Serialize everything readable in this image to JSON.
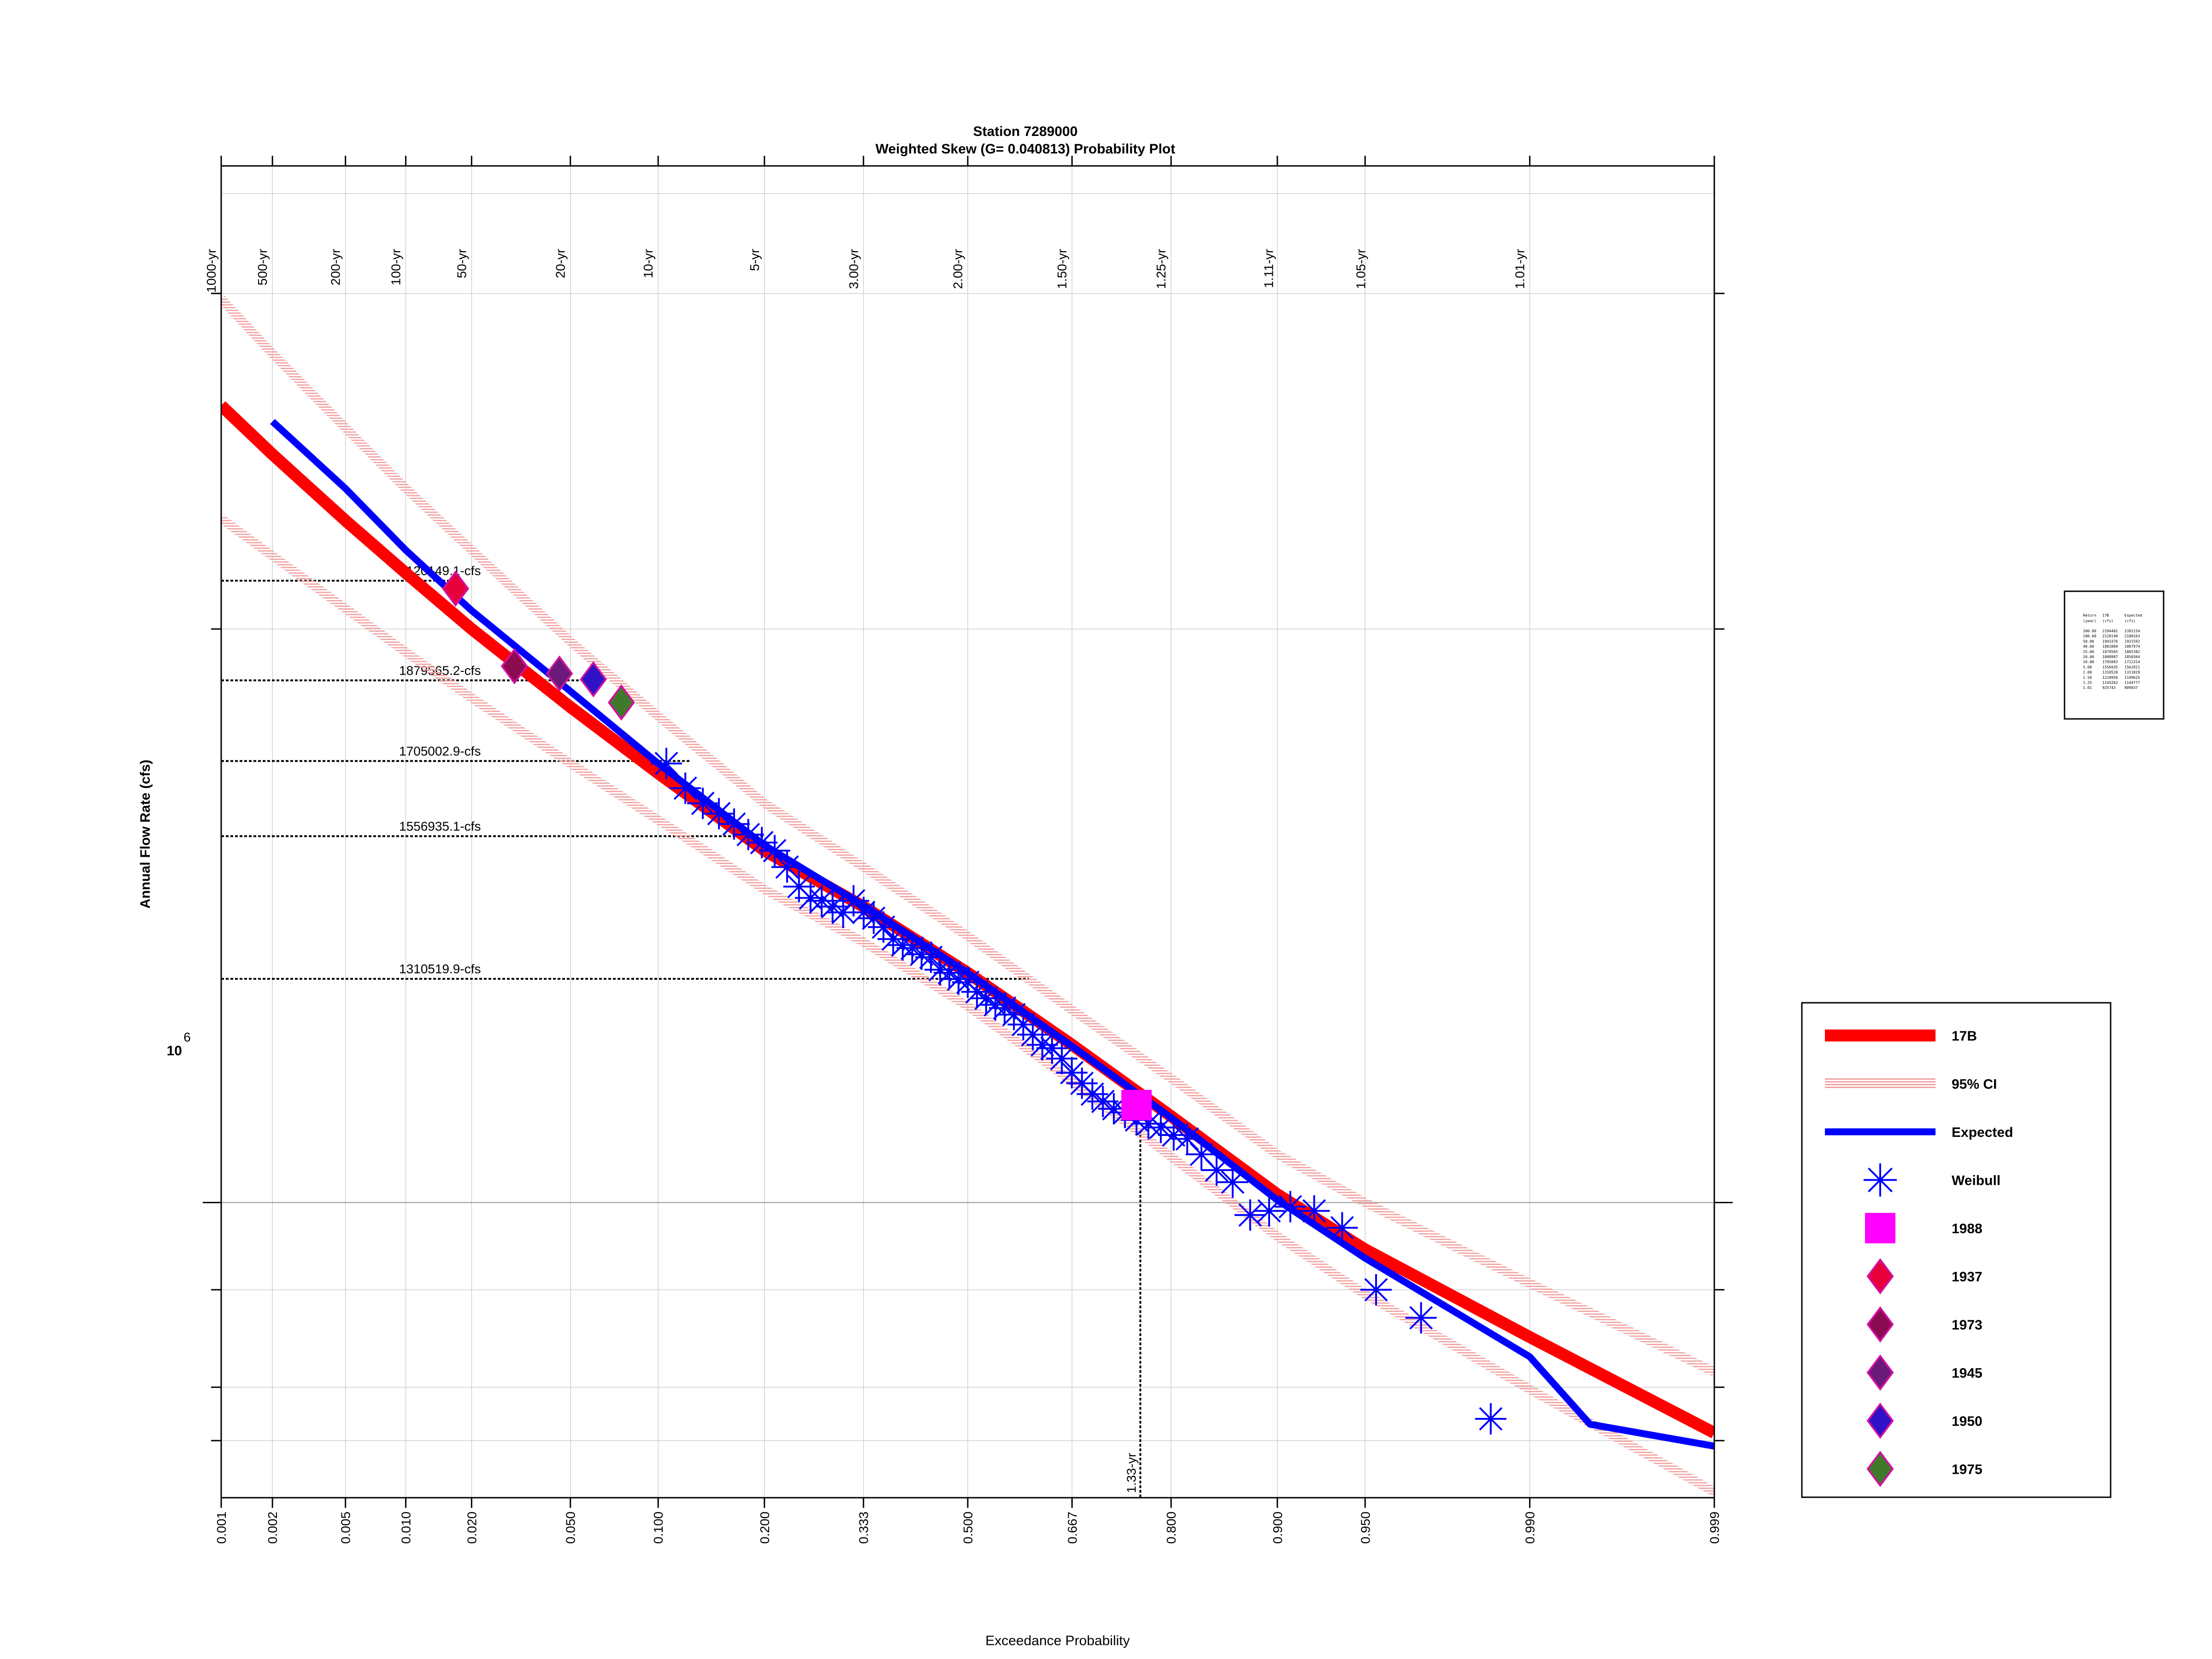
{
  "chart_data": {
    "type": "line",
    "title": "Station 7289000",
    "subtitle": "Weighted Skew (G= 0.040813) Probability Plot",
    "xlabel": "Exceedance Probability",
    "ylabel": "Annual Flow Rate (cfs)",
    "x_scale": "normal-probability (reversed)",
    "y_scale": "log",
    "ylim": [
      700000,
      3500000
    ],
    "grid": true,
    "x_ticks": [
      "0.999",
      "0.990",
      "0.950",
      "0.900",
      "0.800",
      "0.667",
      "0.500",
      "0.333",
      "0.200",
      "0.100",
      "0.050",
      "0.020",
      "0.010",
      "0.005",
      "0.002",
      "0.001"
    ],
    "x_tick_values": [
      0.999,
      0.99,
      0.95,
      0.9,
      0.8,
      0.667,
      0.5,
      0.333,
      0.2,
      0.1,
      0.05,
      0.02,
      0.01,
      0.005,
      0.002,
      0.001
    ],
    "return_period_labels": [
      "1.01-yr",
      "1.05-yr",
      "1.11-yr",
      "1.25-yr",
      "1.50-yr",
      "2.00-yr",
      "3.00-yr",
      "5-yr",
      "10-yr",
      "20-yr",
      "50-yr",
      "100-yr",
      "200-yr",
      "500-yr",
      "1000-yr"
    ],
    "return_period_probs": [
      0.99,
      0.9524,
      0.9009,
      0.8,
      0.6667,
      0.5,
      0.3333,
      0.2,
      0.1,
      0.05,
      0.02,
      0.01,
      0.005,
      0.002,
      0.001
    ],
    "y_tick_label": {
      "base": "10",
      "exp": "6",
      "value": 1000000
    },
    "y_tick_values": [
      750000,
      800000,
      900000,
      1000000,
      2000000,
      3000000
    ],
    "reference_lines": [
      {
        "label": "2120149.1-cfs",
        "value": 2120149.1,
        "prob_end": 0.0172
      },
      {
        "label": "1879565.2-cfs",
        "value": 1879565.2,
        "prob_end": 0.0667
      },
      {
        "label": "1705002.9-cfs",
        "value": 1705002.9,
        "prob_end": 0.125
      },
      {
        "label": "1556935.1-cfs",
        "value": 1556935.1,
        "prob_end": 0.2
      },
      {
        "label": "1310519.9-cfs",
        "value": 1310519.9,
        "prob_end": 0.6
      }
    ],
    "vertical_reference": {
      "label": "1.33-yr",
      "prob": 0.7625,
      "value": 1091000
    },
    "series": [
      {
        "name": "17B",
        "color": "#ff0000",
        "x": [
          0.999,
          0.99,
          0.95,
          0.9,
          0.8,
          0.667,
          0.5,
          0.333,
          0.2,
          0.1,
          0.05,
          0.02,
          0.01,
          0.005,
          0.002,
          0.001
        ],
        "y": [
          757000,
          850000,
          945000,
          1010000,
          1110000,
          1210000,
          1320000,
          1430000,
          1530000,
          1680000,
          1820000,
          2000000,
          2140000,
          2280000,
          2470000,
          2620000
        ]
      },
      {
        "name": "95% CI",
        "color": "#f4a6a6",
        "x": [
          0.999,
          0.99,
          0.95,
          0.9,
          0.8,
          0.667,
          0.5,
          0.333,
          0.2,
          0.1,
          0.05,
          0.02,
          0.01,
          0.005,
          0.002,
          0.001
        ],
        "y": [
          815000,
          907000,
          1000000,
          1060000,
          1162000,
          1262000,
          1380000,
          1500000,
          1620000,
          1800000,
          1970000,
          2200000,
          2370000,
          2550000,
          2790000,
          2980000
        ]
      },
      {
        "name": "",
        "color": "#f4a6a6",
        "x": [
          0.999,
          0.99,
          0.95,
          0.9,
          0.8,
          0.667,
          0.5,
          0.333,
          0.2,
          0.1,
          0.05,
          0.02,
          0.01,
          0.005,
          0.002,
          0.001
        ],
        "y": [
          705000,
          798000,
          895000,
          960000,
          1057000,
          1158000,
          1268000,
          1370000,
          1460000,
          1588000,
          1700000,
          1840000,
          1945000,
          2050000,
          2185000,
          2285000
        ]
      },
      {
        "name": "Expected",
        "color": "#0000ff",
        "x": [
          0.999,
          0.995,
          0.99,
          0.95,
          0.9,
          0.8,
          0.667,
          0.5,
          0.333,
          0.2,
          0.1,
          0.05,
          0.02,
          0.01,
          0.005,
          0.002
        ],
        "y": [
          745000,
          765000,
          830000,
          935000,
          1003000,
          1108000,
          1208000,
          1320000,
          1432000,
          1540000,
          1700000,
          1855000,
          2045000,
          2200000,
          2370000,
          2570000
        ]
      }
    ],
    "weibull_points": {
      "name": "Weibull",
      "color": "#0000ff",
      "x": [
        0.9848,
        0.9697,
        0.9545,
        0.9394,
        0.9242,
        0.9091,
        0.8939,
        0.8788,
        0.8636,
        0.8485,
        0.8333,
        0.8182,
        0.803,
        0.7879,
        0.7727,
        0.7576,
        0.7424,
        0.7273,
        0.7121,
        0.697,
        0.6818,
        0.6667,
        0.6515,
        0.6364,
        0.6212,
        0.6061,
        0.5909,
        0.5758,
        0.5606,
        0.5455,
        0.5303,
        0.5152,
        0.5,
        0.4848,
        0.4697,
        0.4545,
        0.4394,
        0.4242,
        0.4091,
        0.3939,
        0.3788,
        0.3636,
        0.3485,
        0.3333,
        0.3182,
        0.303,
        0.2879,
        0.2727,
        0.2576,
        0.2424,
        0.2273,
        0.2121,
        0.197,
        0.1818,
        0.1667,
        0.1515,
        0.1364,
        0.1212,
        0.1061
      ],
      "y": [
        770000,
        870000,
        900000,
        970000,
        990000,
        995000,
        990000,
        985000,
        1025000,
        1040000,
        1060000,
        1080000,
        1085000,
        1095000,
        1100000,
        1105000,
        1115000,
        1120000,
        1130000,
        1140000,
        1155000,
        1170000,
        1190000,
        1205000,
        1210000,
        1225000,
        1240000,
        1255000,
        1265000,
        1270000,
        1280000,
        1290000,
        1305000,
        1310000,
        1320000,
        1325000,
        1345000,
        1350000,
        1360000,
        1365000,
        1375000,
        1395000,
        1410000,
        1420000,
        1440000,
        1420000,
        1430000,
        1440000,
        1445000,
        1465000,
        1500000,
        1530000,
        1545000,
        1560000,
        1580000,
        1600000,
        1620000,
        1650000,
        1700000
      ]
    },
    "highlight_points": [
      {
        "name": "1988",
        "shape": "square",
        "color": "#ff00ff",
        "x": 0.7576,
        "y": 1125000
      },
      {
        "name": "1937",
        "shape": "diamond",
        "color": "#e8003b",
        "x": 0.017,
        "y": 2100000
      },
      {
        "name": "1973",
        "shape": "diamond",
        "color": "#8b0a50",
        "x": 0.0303,
        "y": 1912000
      },
      {
        "name": "1945",
        "shape": "diamond",
        "color": "#6a1b7a",
        "x": 0.0455,
        "y": 1895000
      },
      {
        "name": "1950",
        "shape": "diamond",
        "color": "#2f12c8",
        "x": 0.0606,
        "y": 1882000
      },
      {
        "name": "1975",
        "shape": "diamond",
        "color": "#3f7a2a",
        "x": 0.0758,
        "y": 1830000
      }
    ],
    "legend_position": "bottom-right",
    "legend_entries": [
      "17B",
      "95% CI",
      "Expected",
      "Weibull",
      "1988",
      "1937",
      "1973",
      "1945",
      "1950",
      "1975"
    ],
    "summary_table": {
      "header": [
        "Return",
        "17B",
        "Expected"
      ],
      "header2": [
        "(year)",
        "(cfs)",
        "(cfs)"
      ],
      "rows": [
        [
          "200.00",
          "2294401",
          "2392154"
        ],
        [
          "100.00",
          "2120149",
          "2189163"
        ],
        [
          "50.00",
          "1943376",
          "1931592"
        ],
        [
          "40.00",
          "1882869",
          "1887974"
        ],
        [
          "25.00",
          "1879565",
          "1865382"
        ],
        [
          "20.00",
          "1808987",
          "1850364"
        ],
        [
          "10.00",
          "1705003",
          "1712314"
        ],
        [
          "5.00",
          "1556935",
          "1562811"
        ],
        [
          "2.00",
          "1310520",
          "1311829"
        ],
        [
          "1.50",
          "1210956",
          "1199625"
        ],
        [
          "1.25",
          "1145262",
          "1144777"
        ],
        [
          "1.01",
          "925743",
          "909037"
        ]
      ]
    }
  }
}
